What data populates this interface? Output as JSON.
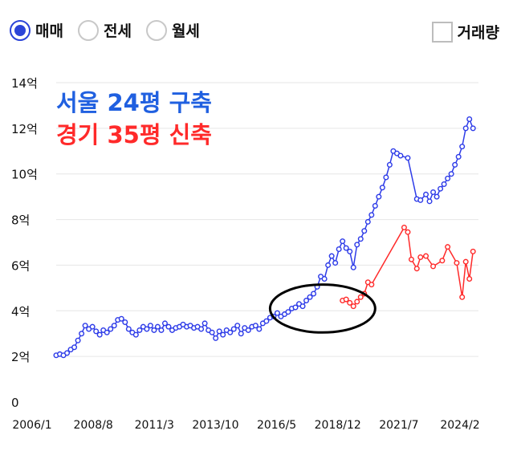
{
  "controls": {
    "options": [
      {
        "label": "매매",
        "selected": true
      },
      {
        "label": "전세",
        "selected": false
      },
      {
        "label": "월세",
        "selected": false
      }
    ],
    "volume_label": "거래량",
    "volume_checked": false
  },
  "colors": {
    "accent": "#2b44d8",
    "series1": "#2d3be8",
    "series2": "#ff2a2a",
    "ellipse": "#000000"
  },
  "chart_data": {
    "type": "line",
    "ylim": [
      0,
      14
    ],
    "y_ticks": [
      0,
      2,
      4,
      6,
      8,
      10,
      12,
      14
    ],
    "y_tick_labels": [
      "0",
      "2억",
      "4억",
      "6억",
      "8억",
      "10억",
      "12억",
      "14억"
    ],
    "x_ticks": [
      "2006/1",
      "2008/8",
      "2011/3",
      "2013/10",
      "2016/5",
      "2018/12",
      "2021/7",
      "2024/2"
    ],
    "annotations": [
      {
        "text": "서울 24평 구축",
        "color": "#2060e0"
      },
      {
        "text": "경기 35평 신축",
        "color": "#ff2a2a"
      }
    ],
    "series": [
      {
        "color": "#2d3be8",
        "points": [
          [
            "2006-01",
            2.05
          ],
          [
            "2006-03",
            2.1
          ],
          [
            "2006-05",
            2.05
          ],
          [
            "2006-07",
            2.15
          ],
          [
            "2006-09",
            2.3
          ],
          [
            "2006-11",
            2.4
          ],
          [
            "2007-01",
            2.7
          ],
          [
            "2007-03",
            3.0
          ],
          [
            "2007-05",
            3.35
          ],
          [
            "2007-07",
            3.2
          ],
          [
            "2007-09",
            3.3
          ],
          [
            "2007-11",
            3.1
          ],
          [
            "2008-01",
            2.95
          ],
          [
            "2008-03",
            3.15
          ],
          [
            "2008-05",
            3.05
          ],
          [
            "2008-07",
            3.2
          ],
          [
            "2008-09",
            3.35
          ],
          [
            "2008-11",
            3.6
          ],
          [
            "2009-01",
            3.65
          ],
          [
            "2009-03",
            3.5
          ],
          [
            "2009-05",
            3.2
          ],
          [
            "2009-07",
            3.05
          ],
          [
            "2009-09",
            2.95
          ],
          [
            "2009-11",
            3.15
          ],
          [
            "2010-01",
            3.3
          ],
          [
            "2010-03",
            3.2
          ],
          [
            "2010-05",
            3.35
          ],
          [
            "2010-07",
            3.15
          ],
          [
            "2010-09",
            3.3
          ],
          [
            "2010-11",
            3.15
          ],
          [
            "2011-01",
            3.45
          ],
          [
            "2011-03",
            3.3
          ],
          [
            "2011-05",
            3.15
          ],
          [
            "2011-07",
            3.25
          ],
          [
            "2011-09",
            3.3
          ],
          [
            "2011-11",
            3.4
          ],
          [
            "2012-01",
            3.3
          ],
          [
            "2012-03",
            3.35
          ],
          [
            "2012-05",
            3.25
          ],
          [
            "2012-07",
            3.3
          ],
          [
            "2012-09",
            3.2
          ],
          [
            "2012-11",
            3.45
          ],
          [
            "2013-01",
            3.15
          ],
          [
            "2013-03",
            3.05
          ],
          [
            "2013-05",
            2.8
          ],
          [
            "2013-07",
            3.1
          ],
          [
            "2013-09",
            2.95
          ],
          [
            "2013-11",
            3.15
          ],
          [
            "2014-01",
            3.05
          ],
          [
            "2014-03",
            3.2
          ],
          [
            "2014-05",
            3.35
          ],
          [
            "2014-07",
            3.0
          ],
          [
            "2014-09",
            3.25
          ],
          [
            "2014-11",
            3.15
          ],
          [
            "2015-01",
            3.3
          ],
          [
            "2015-03",
            3.35
          ],
          [
            "2015-05",
            3.2
          ],
          [
            "2015-07",
            3.45
          ],
          [
            "2015-09",
            3.55
          ],
          [
            "2015-11",
            3.7
          ],
          [
            "2016-01",
            3.75
          ],
          [
            "2016-03",
            3.9
          ],
          [
            "2016-05",
            3.75
          ],
          [
            "2016-07",
            3.85
          ],
          [
            "2016-09",
            3.95
          ],
          [
            "2016-11",
            4.1
          ],
          [
            "2017-01",
            4.15
          ],
          [
            "2017-03",
            4.3
          ],
          [
            "2017-05",
            4.2
          ],
          [
            "2017-07",
            4.45
          ],
          [
            "2017-09",
            4.6
          ],
          [
            "2017-11",
            4.75
          ],
          [
            "2018-01",
            5.05
          ],
          [
            "2018-03",
            5.5
          ],
          [
            "2018-05",
            5.4
          ],
          [
            "2018-07",
            6.0
          ],
          [
            "2018-09",
            6.4
          ],
          [
            "2018-11",
            6.1
          ],
          [
            "2019-01",
            6.7
          ],
          [
            "2019-03",
            7.05
          ],
          [
            "2019-05",
            6.75
          ],
          [
            "2019-07",
            6.6
          ],
          [
            "2019-09",
            5.9
          ],
          [
            "2019-11",
            6.9
          ],
          [
            "2020-01",
            7.15
          ],
          [
            "2020-03",
            7.5
          ],
          [
            "2020-05",
            7.9
          ],
          [
            "2020-07",
            8.2
          ],
          [
            "2020-09",
            8.6
          ],
          [
            "2020-11",
            9.0
          ],
          [
            "2021-01",
            9.4
          ],
          [
            "2021-03",
            9.85
          ],
          [
            "2021-05",
            10.4
          ],
          [
            "2021-07",
            11.0
          ],
          [
            "2021-09",
            10.9
          ],
          [
            "2021-11",
            10.8
          ],
          [
            "2022-03",
            10.7
          ],
          [
            "2022-08",
            8.9
          ],
          [
            "2022-10",
            8.85
          ],
          [
            "2023-01",
            9.1
          ],
          [
            "2023-03",
            8.8
          ],
          [
            "2023-05",
            9.2
          ],
          [
            "2023-07",
            9.0
          ],
          [
            "2023-09",
            9.35
          ],
          [
            "2023-11",
            9.55
          ],
          [
            "2024-01",
            9.8
          ],
          [
            "2024-03",
            10.0
          ],
          [
            "2024-05",
            10.4
          ],
          [
            "2024-07",
            10.75
          ],
          [
            "2024-09",
            11.2
          ],
          [
            "2024-11",
            12.0
          ],
          [
            "2025-01",
            12.4
          ],
          [
            "2025-03",
            12.0
          ]
        ]
      },
      {
        "color": "#ff2a2a",
        "points": [
          [
            "2019-03",
            4.45
          ],
          [
            "2019-05",
            4.5
          ],
          [
            "2019-07",
            4.35
          ],
          [
            "2019-09",
            4.2
          ],
          [
            "2019-11",
            4.4
          ],
          [
            "2020-01",
            4.6
          ],
          [
            "2020-03",
            4.75
          ],
          [
            "2020-05",
            5.25
          ],
          [
            "2020-07",
            5.15
          ],
          [
            "2022-01",
            7.65
          ],
          [
            "2022-03",
            7.45
          ],
          [
            "2022-05",
            6.25
          ],
          [
            "2022-08",
            5.85
          ],
          [
            "2022-10",
            6.35
          ],
          [
            "2023-01",
            6.4
          ],
          [
            "2023-05",
            5.95
          ],
          [
            "2023-10",
            6.2
          ],
          [
            "2024-01",
            6.8
          ],
          [
            "2024-06",
            6.1
          ],
          [
            "2024-09",
            4.6
          ],
          [
            "2024-11",
            6.15
          ],
          [
            "2025-01",
            5.4
          ],
          [
            "2025-03",
            6.6
          ]
        ]
      }
    ],
    "highlight": {
      "shape": "ellipse",
      "x_range": [
        "2015-11",
        "2020-09"
      ],
      "y_range": [
        3.05,
        5.15
      ]
    }
  }
}
